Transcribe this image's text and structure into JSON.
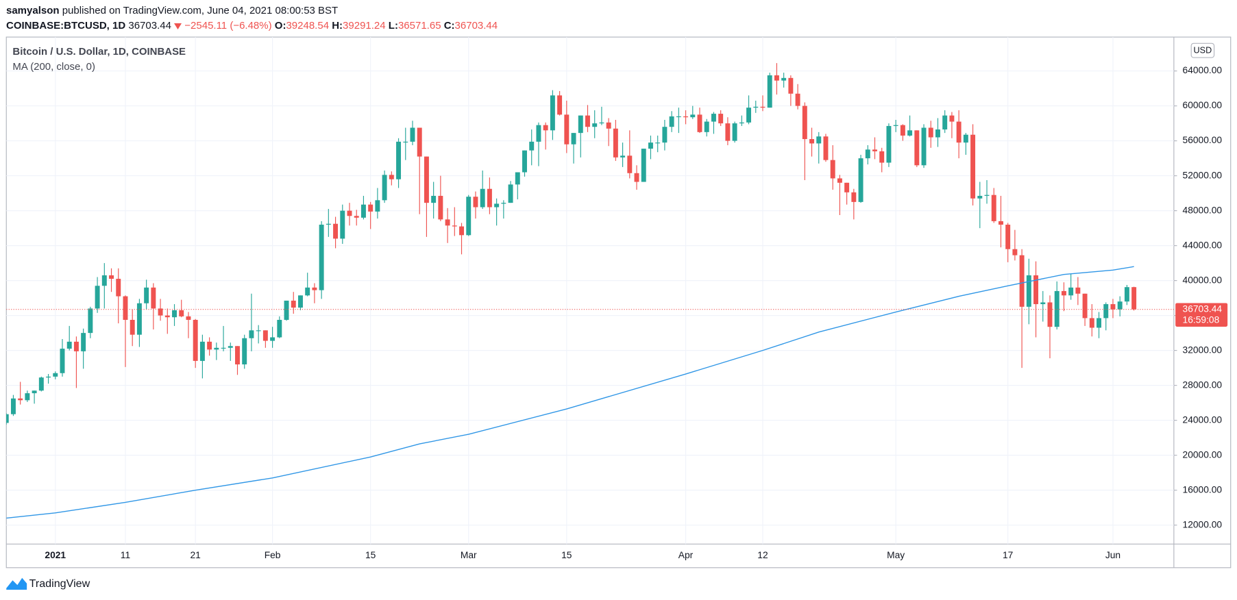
{
  "header": {
    "user": "samyalson",
    "published": "published on TradingView.com, June 04, 2021 08:00:53 BST",
    "symbol": "COINBASE:BTCUSD, 1D",
    "change": "−2545.11",
    "change_pct": "(−6.48%)",
    "open_label": "O:",
    "high_label": "H:",
    "low_label": "L:",
    "close_label": "C:"
  },
  "footer": {
    "brand": "TradingView"
  },
  "chart_data": {
    "type": "candlestick",
    "title": "Bitcoin / U.S. Dollar, 1D, COINBASE",
    "indicator": "MA (200, close, 0)",
    "currency": "USD",
    "countdown": "16:59:08",
    "up_color": "#26a69a",
    "down_color": "#ef5350",
    "x": [
      -6,
      -5,
      -4,
      -3,
      -2,
      -1,
      0,
      1,
      2,
      3,
      4,
      5,
      6,
      7,
      8,
      9,
      10,
      11,
      12,
      13,
      14,
      15,
      16,
      17,
      18,
      19,
      20,
      21,
      22,
      23,
      24,
      25,
      26,
      27,
      28,
      29,
      30,
      31,
      32,
      33,
      34,
      35,
      36,
      37,
      38,
      39,
      40,
      41,
      42,
      43,
      44,
      45,
      46,
      47,
      48,
      49,
      50,
      51,
      52,
      53,
      54,
      55,
      56,
      57,
      58,
      59,
      60,
      61,
      62,
      63,
      64,
      65,
      66,
      67,
      68,
      69,
      70,
      71,
      72,
      73,
      74,
      75,
      76,
      77,
      78,
      79,
      80,
      81,
      82,
      83,
      84,
      85,
      86,
      87,
      88,
      89,
      90,
      91,
      92,
      93,
      94,
      95,
      96,
      97,
      98,
      99,
      100,
      101,
      102,
      103,
      104,
      105,
      106,
      107,
      108,
      109,
      110,
      111,
      112,
      113,
      114,
      115,
      116,
      117,
      118,
      119,
      120,
      121,
      122,
      123,
      124,
      125,
      126,
      127,
      128,
      129,
      130,
      131,
      132,
      133,
      134,
      135,
      136,
      137,
      138,
      139,
      140,
      141,
      142,
      143,
      144,
      145,
      146,
      147,
      148,
      149,
      150,
      151,
      152,
      153,
      154,
      155
    ],
    "open": [
      23700,
      24700,
      26500,
      26300,
      27100,
      27400,
      28900,
      29000,
      29400,
      32200,
      33000,
      31900,
      34000,
      36800,
      39400,
      40600,
      40200,
      38200,
      35500,
      33800,
      37400,
      39200,
      36800,
      36000,
      35800,
      36600,
      35900,
      35500,
      30800,
      33000,
      32100,
      32300,
      32300,
      32500,
      30400,
      33400,
      34300,
      34300,
      33100,
      33500,
      35500,
      37700,
      36900,
      38300,
      39200,
      38900,
      46400,
      46500,
      44800,
      48000,
      47400,
      47200,
      48700,
      47900,
      49200,
      52100,
      51600,
      55900,
      55900,
      57500,
      54200,
      48900,
      49700,
      47000,
      46300,
      46200,
      45200,
      49600,
      48400,
      50500,
      48400,
      48800,
      48900,
      51000,
      52400,
      54900,
      55900,
      57800,
      57200,
      61200,
      59000,
      55600,
      56900,
      58900,
      57600,
      58000,
      58100,
      57400,
      54100,
      54300,
      52300,
      51300,
      55100,
      55800,
      55800,
      57600,
      58800,
      58800,
      58700,
      59000,
      57000,
      58200,
      59100,
      58000,
      56000,
      58000,
      58100,
      59800,
      59900,
      59800,
      63500,
      62900,
      63200,
      61400,
      60000,
      56200,
      55700,
      56500,
      53800,
      51700,
      51200,
      50100,
      49000,
      54000,
      55000,
      54800,
      53500,
      57700,
      57800,
      56600,
      57200,
      53200,
      57500,
      56400,
      57300,
      58900,
      58200,
      55800,
      56700,
      49400,
      49700,
      49800,
      46800,
      46400,
      43600,
      42900,
      37000,
      40600,
      37300,
      37500,
      34700,
      38800,
      38300,
      39200,
      38500,
      35700,
      34600,
      35700,
      37300,
      36700,
      37600,
      39248.54
    ],
    "high": [
      24800,
      26900,
      28400,
      27400,
      27400,
      29000,
      29300,
      29600,
      33300,
      34800,
      33600,
      34500,
      37000,
      40400,
      42000,
      41400,
      41400,
      38300,
      36700,
      37900,
      40100,
      39700,
      37900,
      36800,
      37300,
      37800,
      36400,
      35600,
      33800,
      33500,
      32900,
      34800,
      32900,
      32500,
      33800,
      38500,
      34900,
      34300,
      34700,
      35900,
      37700,
      38700,
      38300,
      40900,
      39700,
      46800,
      48200,
      47300,
      48700,
      48900,
      48100,
      49700,
      49000,
      50600,
      52600,
      52500,
      56300,
      57500,
      58300,
      57500,
      54200,
      51300,
      52000,
      48300,
      48400,
      46600,
      49800,
      50200,
      52600,
      51800,
      49400,
      49200,
      51400,
      52400,
      54900,
      57300,
      58100,
      58100,
      61800,
      61700,
      60600,
      56900,
      58900,
      60100,
      59500,
      59900,
      58600,
      58400,
      55800,
      57200,
      53200,
      55100,
      56600,
      56600,
      58400,
      59400,
      59800,
      59500,
      60000,
      59800,
      58500,
      59300,
      59500,
      58700,
      58200,
      58900,
      61200,
      60600,
      61200,
      63800,
      64900,
      63800,
      63500,
      62500,
      60400,
      57500,
      57000,
      56800,
      55500,
      52100,
      51200,
      50500,
      54400,
      55500,
      56400,
      55200,
      58000,
      58400,
      57900,
      58900,
      57200,
      57900,
      58300,
      58600,
      59500,
      59300,
      59500,
      56900,
      57900,
      51300,
      51500,
      50600,
      49700,
      46600,
      45800,
      43600,
      42500,
      42200,
      38800,
      38300,
      39900,
      39800,
      40800,
      40400,
      38500,
      37300,
      36400,
      37500,
      37900,
      38200,
      39500,
      39291.24
    ],
    "low": [
      23500,
      24500,
      25800,
      26100,
      25900,
      27300,
      28200,
      28700,
      29000,
      32000,
      27700,
      29900,
      33400,
      36300,
      36800,
      38700,
      35100,
      30100,
      32500,
      32400,
      36700,
      34400,
      35400,
      33900,
      34800,
      35800,
      33400,
      30000,
      28800,
      31400,
      30900,
      31900,
      30800,
      29200,
      29900,
      31900,
      32800,
      32300,
      32300,
      33400,
      35400,
      36200,
      36600,
      38200,
      37400,
      37900,
      45000,
      43700,
      44200,
      46300,
      46300,
      47000,
      45900,
      47100,
      48900,
      50900,
      50600,
      53800,
      55500,
      47600,
      45000,
      47100,
      46800,
      44300,
      45100,
      43000,
      45100,
      47100,
      48200,
      47600,
      46300,
      47100,
      48900,
      49300,
      51900,
      53200,
      53100,
      55000,
      56100,
      58900,
      54600,
      53400,
      54100,
      57000,
      56300,
      57800,
      55400,
      53700,
      53000,
      51700,
      50400,
      51300,
      53900,
      54700,
      54900,
      57000,
      56900,
      57900,
      58500,
      56900,
      56500,
      56800,
      57700,
      55500,
      55800,
      57700,
      57900,
      59200,
      59400,
      59800,
      61300,
      62100,
      60000,
      59600,
      51500,
      54200,
      53400,
      53600,
      50400,
      47500,
      48700,
      47000,
      48900,
      53300,
      53900,
      52400,
      53000,
      57000,
      56000,
      56500,
      53000,
      52900,
      55200,
      55300,
      56900,
      56300,
      54000,
      54400,
      48600,
      46000,
      48800,
      46600,
      43800,
      42100,
      42300,
      30000,
      35000,
      33500,
      35300,
      31100,
      34400,
      36500,
      37800,
      37200,
      34800,
      33600,
      33400,
      34300,
      35700,
      35900,
      37200,
      36571.65
    ],
    "close": [
      24700,
      26500,
      26300,
      27100,
      27400,
      28900,
      29000,
      29400,
      32200,
      33000,
      31900,
      34000,
      36800,
      39400,
      40600,
      40200,
      38200,
      35500,
      33800,
      37400,
      39200,
      36800,
      36000,
      35800,
      36600,
      35900,
      35500,
      30800,
      33000,
      32100,
      32300,
      32300,
      32500,
      30400,
      33400,
      34300,
      34300,
      33100,
      33500,
      35500,
      37700,
      36900,
      38300,
      39200,
      38900,
      46400,
      46500,
      44800,
      48000,
      47400,
      47200,
      48700,
      47900,
      49200,
      52100,
      51600,
      55900,
      55900,
      57500,
      54200,
      48900,
      49700,
      47000,
      46300,
      46200,
      45200,
      49600,
      48400,
      50500,
      48400,
      48800,
      48900,
      51000,
      52400,
      54900,
      55900,
      57800,
      57200,
      61200,
      59000,
      55600,
      56900,
      58900,
      57600,
      58000,
      58100,
      57400,
      54100,
      54300,
      52300,
      51300,
      55100,
      55800,
      55800,
      57600,
      58800,
      58800,
      58700,
      59000,
      57000,
      58200,
      59100,
      58000,
      56000,
      58000,
      58100,
      59800,
      59900,
      59800,
      63500,
      62900,
      63200,
      61400,
      60000,
      56200,
      55700,
      56500,
      53800,
      51700,
      51200,
      50100,
      49000,
      54000,
      55000,
      54800,
      53500,
      57700,
      57800,
      56600,
      57200,
      53200,
      57500,
      56400,
      57300,
      58900,
      58200,
      55800,
      56700,
      49400,
      49700,
      49800,
      46800,
      46400,
      43600,
      42900,
      37000,
      40600,
      37300,
      37500,
      34700,
      38800,
      38300,
      39200,
      38500,
      35700,
      34600,
      35700,
      37300,
      36700,
      37600,
      39248.54,
      36703.44
    ],
    "ma": {
      "name": "MA (200, close, 0)",
      "color": "#2f96e6",
      "x": [
        -6,
        1,
        11,
        21,
        32,
        46,
        53,
        60,
        74,
        91,
        102,
        110,
        121,
        130,
        137,
        145,
        152,
        155
      ],
      "values": [
        12800,
        13400,
        14600,
        16000,
        17400,
        19800,
        21300,
        22400,
        25300,
        29300,
        32000,
        34100,
        36400,
        38200,
        39400,
        40700,
        41200,
        41600
      ]
    },
    "xlim": [
      -6,
      160.7
    ],
    "xticks": [
      {
        "value": 1,
        "label": "2021"
      },
      11,
      21,
      {
        "value": 32,
        "label": "Feb"
      },
      {
        "value": 46,
        "label": "15"
      },
      {
        "value": 60,
        "label": "Mar"
      },
      {
        "value": 74,
        "label": "15"
      },
      {
        "value": 91,
        "label": "Apr"
      },
      {
        "value": 102,
        "label": "12"
      },
      {
        "value": 121,
        "label": "May"
      },
      {
        "value": 137,
        "label": "17"
      },
      {
        "value": 152,
        "label": "Jun"
      }
    ],
    "ylim": [
      9833,
      67882
    ],
    "yticks": [
      {
        "value": 12000,
        "label": "12000.00"
      },
      {
        "value": 16000,
        "label": "16000.00"
      },
      {
        "value": 20000,
        "label": "20000.00"
      },
      {
        "value": 24000,
        "label": "24000.00"
      },
      {
        "value": 28000,
        "label": "28000.00"
      },
      {
        "value": 32000,
        "label": "32000.00"
      },
      {
        "value": 36000,
        "label": "36000.00"
      },
      {
        "value": 40000,
        "label": "40000.00"
      },
      {
        "value": 44000,
        "label": "44000.00"
      },
      {
        "value": 48000,
        "label": "48000.00"
      },
      {
        "value": 52000,
        "label": "52000.00"
      },
      {
        "value": 56000,
        "label": "56000.00"
      },
      {
        "value": 60000,
        "label": "60000.00"
      },
      {
        "value": 64000,
        "label": "64000.00"
      }
    ],
    "grid": true
  }
}
